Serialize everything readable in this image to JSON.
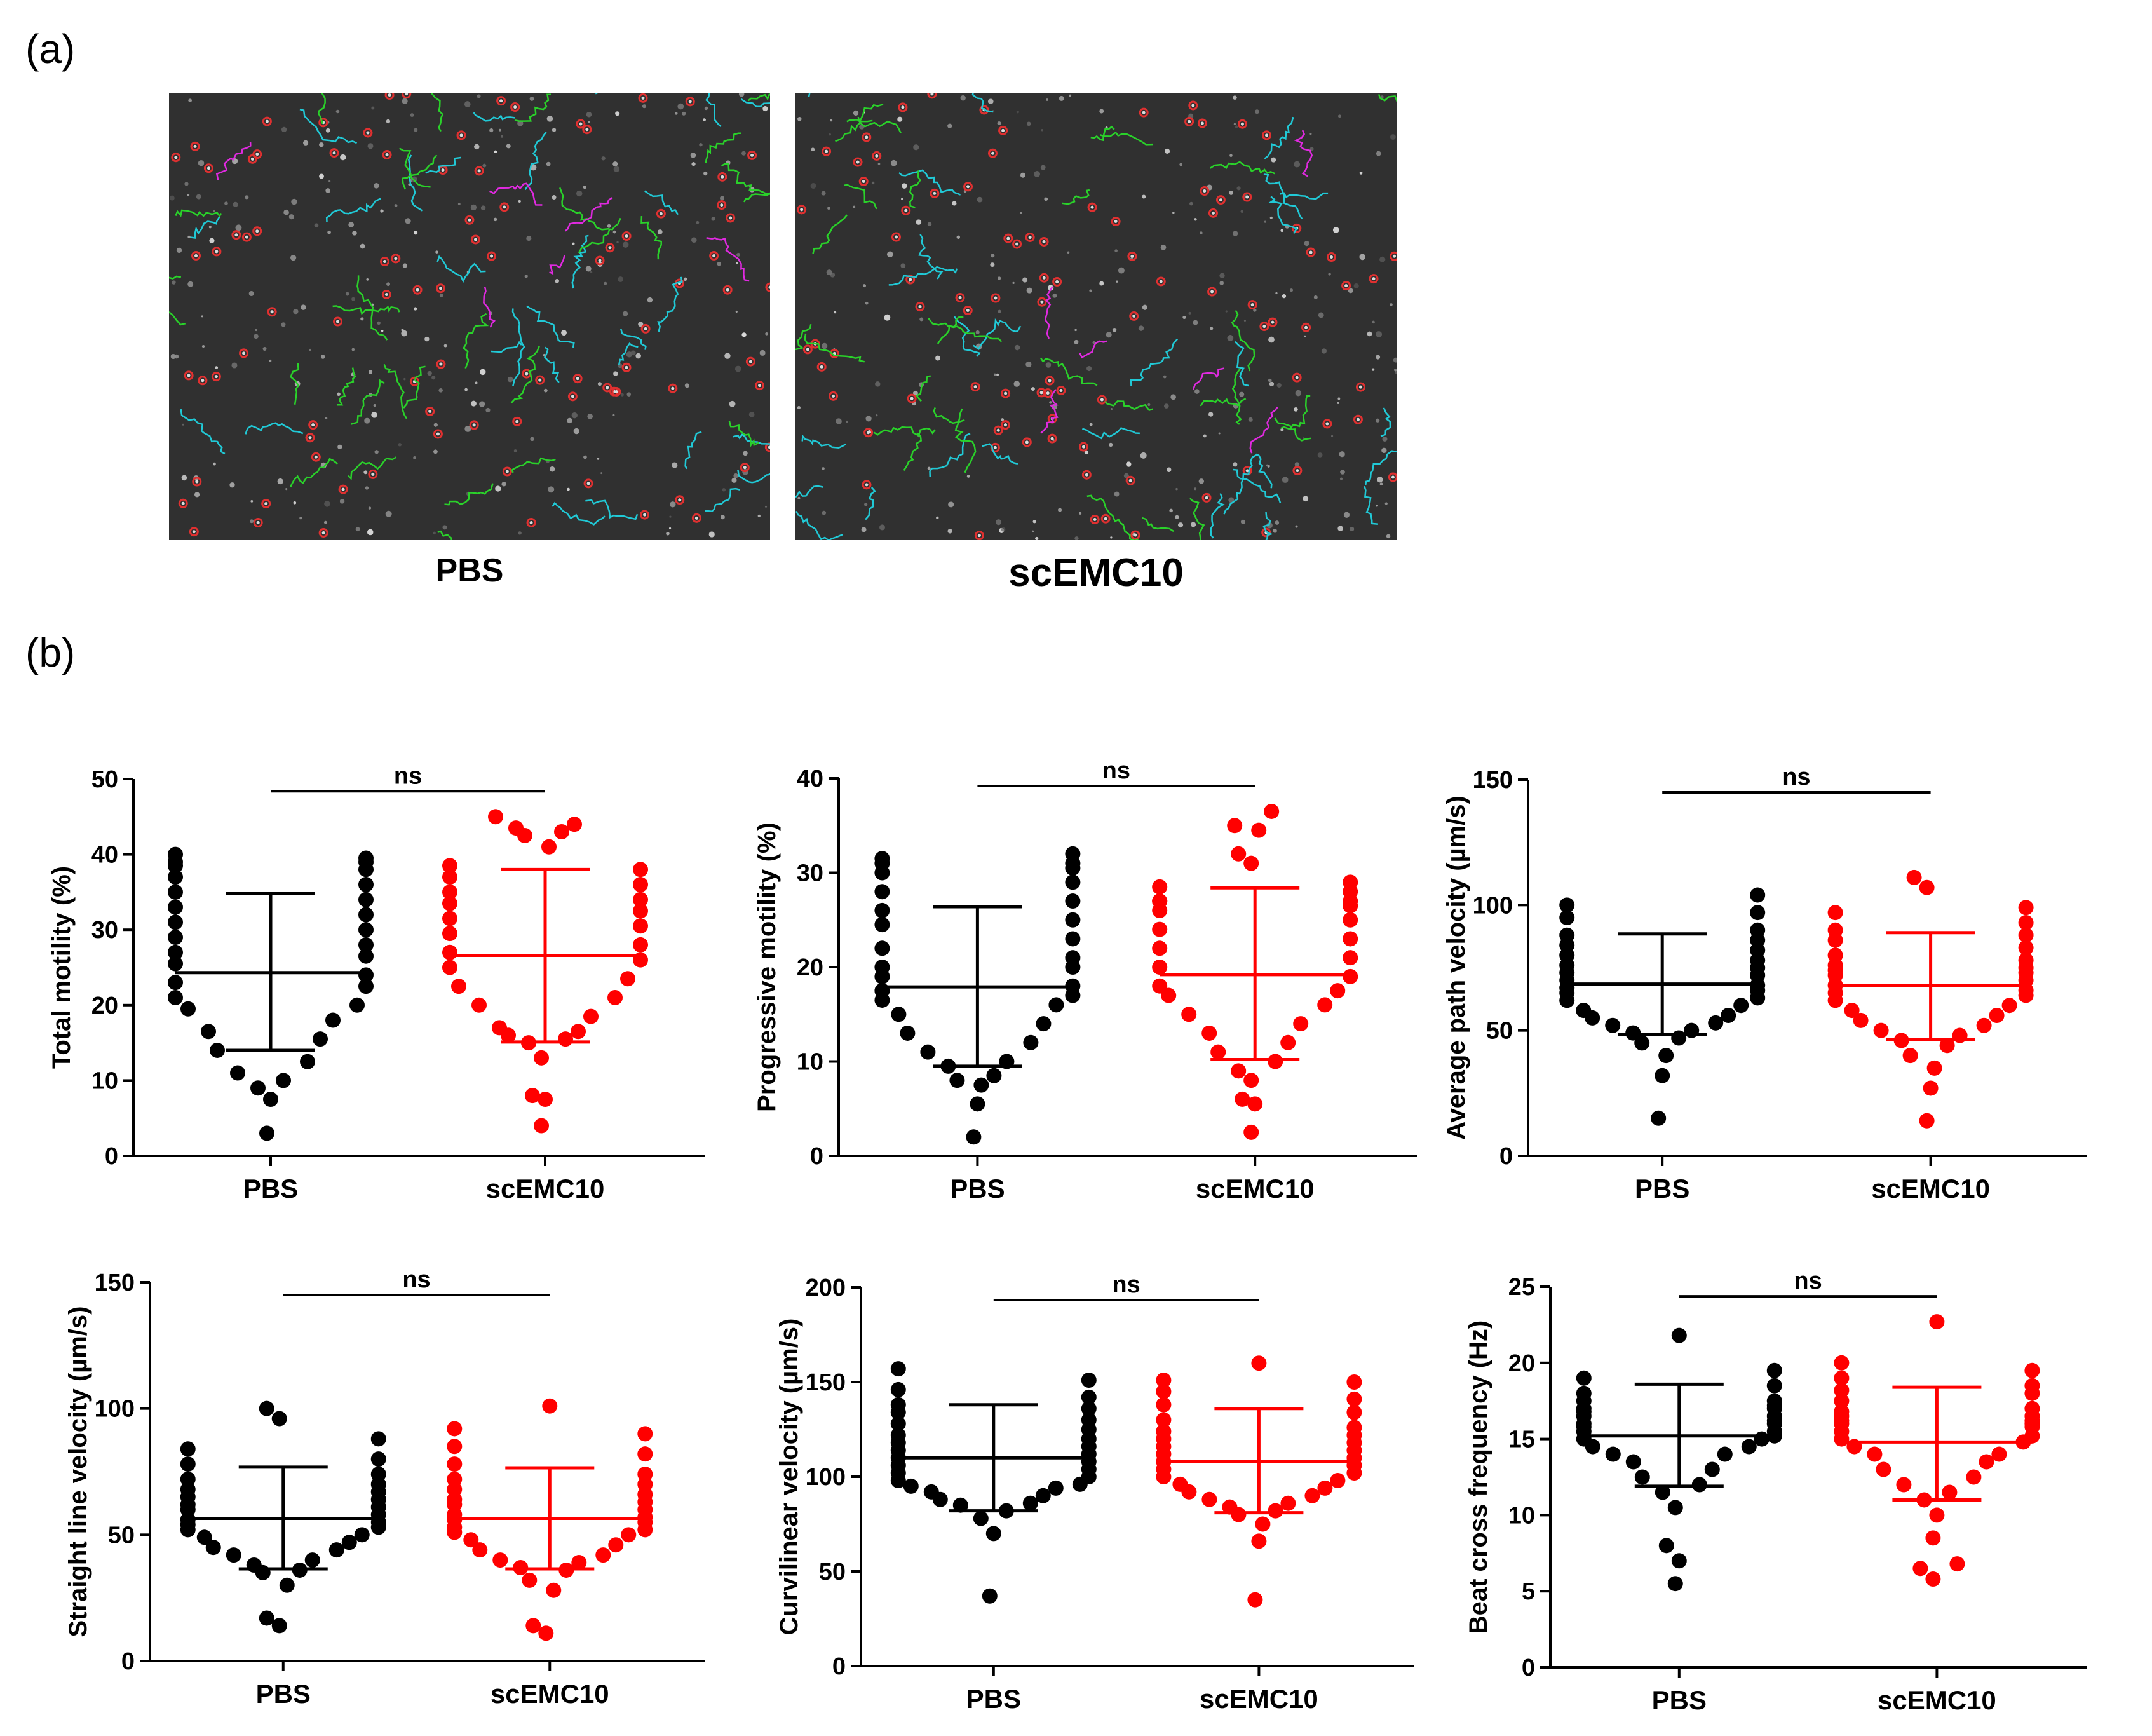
{
  "panel_a": {
    "label": "(a)",
    "images": [
      {
        "caption": "PBS"
      },
      {
        "caption": "scEMC10"
      }
    ]
  },
  "panel_b": {
    "label": "(b)"
  },
  "colors": {
    "pbs": "#000000",
    "scemc10": "#ff0000",
    "axis": "#000000"
  },
  "chart_data": [
    {
      "type": "scatter",
      "ylabel": "Total motility (%)",
      "categories": [
        "PBS",
        "scEMC10"
      ],
      "ylim": [
        0,
        50
      ],
      "yticks": [
        0,
        10,
        20,
        30,
        40,
        50
      ],
      "significance": "ns",
      "series": [
        {
          "name": "PBS",
          "color": "#000000",
          "mean": 24.3,
          "sd_low": 14.0,
          "sd_high": 34.8,
          "values": [
            3,
            7.5,
            9,
            10,
            11,
            12.5,
            14,
            15.5,
            16.5,
            18,
            19.5,
            20,
            21,
            22.5,
            23,
            24,
            25.5,
            26.5,
            27,
            28,
            29,
            30,
            31,
            32,
            33,
            34,
            35,
            36,
            37,
            38,
            38.5,
            39,
            39,
            39.5,
            40
          ]
        },
        {
          "name": "scEMC10",
          "color": "#ff0000",
          "mean": 26.6,
          "sd_low": 15.1,
          "sd_high": 38.0,
          "values": [
            4,
            7.5,
            8,
            13,
            15,
            15.5,
            16,
            16.5,
            17,
            18.5,
            20,
            21,
            22.5,
            23.5,
            25,
            26,
            27,
            28,
            29.5,
            30.5,
            31.5,
            32.5,
            33.5,
            34,
            35,
            36,
            37,
            38,
            38.5,
            41,
            42.5,
            43,
            43.5,
            44,
            45
          ]
        }
      ]
    },
    {
      "type": "scatter",
      "ylabel": "Progressive motility (%)",
      "categories": [
        "PBS",
        "scEMC10"
      ],
      "ylim": [
        0,
        40
      ],
      "yticks": [
        0,
        10,
        20,
        30,
        40
      ],
      "significance": "ns",
      "series": [
        {
          "name": "PBS",
          "color": "#000000",
          "mean": 17.9,
          "sd_low": 9.5,
          "sd_high": 26.4,
          "values": [
            2,
            5.5,
            7.5,
            8,
            8.5,
            9.5,
            10,
            11,
            12,
            13,
            14,
            15,
            16,
            16.5,
            17,
            17.5,
            18,
            19,
            20,
            20,
            21,
            22,
            23,
            24.5,
            25,
            26,
            27,
            28,
            29,
            30,
            30.5,
            31,
            31,
            31.5,
            32
          ]
        },
        {
          "name": "scEMC10",
          "color": "#ff0000",
          "mean": 19.2,
          "sd_low": 10.2,
          "sd_high": 28.4,
          "values": [
            2.5,
            5.5,
            6,
            8,
            9,
            10,
            11,
            12,
            13,
            14,
            15,
            16,
            17,
            17.5,
            18,
            19,
            20,
            21,
            22,
            23,
            24,
            25,
            26,
            26.5,
            27,
            27,
            27,
            28,
            28.5,
            29,
            31,
            32,
            34.5,
            35,
            36.5
          ]
        }
      ]
    },
    {
      "type": "scatter",
      "ylabel": "Average path velocity  (µm/s)",
      "categories": [
        "PBS",
        "scEMC10"
      ],
      "ylim": [
        0,
        150
      ],
      "yticks": [
        0,
        50,
        100,
        150
      ],
      "significance": "ns",
      "series": [
        {
          "name": "PBS",
          "color": "#000000",
          "mean": 68.5,
          "sd_low": 48.5,
          "sd_high": 88.5,
          "values": [
            15,
            32,
            40,
            45,
            47,
            49,
            50,
            52,
            53,
            55,
            56,
            58,
            60,
            62,
            63,
            65,
            66,
            67,
            68,
            70,
            72,
            73,
            75,
            76,
            78,
            80,
            82,
            84,
            86,
            88,
            90,
            95,
            97,
            100,
            104
          ]
        },
        {
          "name": "scEMC10",
          "color": "#ff0000",
          "mean": 67.8,
          "sd_low": 46.5,
          "sd_high": 89.0,
          "values": [
            14,
            27,
            35,
            40,
            44,
            46,
            48,
            50,
            52,
            54,
            56,
            58,
            60,
            62,
            64,
            65,
            66,
            68,
            70,
            72,
            73,
            74,
            75,
            76,
            78,
            80,
            83,
            86,
            88,
            90,
            93,
            97,
            99,
            107,
            111
          ]
        }
      ]
    },
    {
      "type": "scatter",
      "ylabel": "Straight line velocity (µm/s)",
      "categories": [
        "PBS",
        "scEMC10"
      ],
      "ylim": [
        0,
        150
      ],
      "yticks": [
        0,
        50,
        100,
        150
      ],
      "significance": "ns",
      "series": [
        {
          "name": "PBS",
          "color": "#000000",
          "mean": 56.5,
          "sd_low": 36.5,
          "sd_high": 76.8,
          "values": [
            14,
            17,
            30,
            35,
            36,
            38,
            40,
            42,
            44,
            45,
            47,
            49,
            50,
            52,
            53,
            54,
            55,
            56,
            58,
            60,
            61,
            62,
            64,
            65,
            67,
            68,
            70,
            72,
            74,
            78,
            80,
            84,
            88,
            96,
            100
          ]
        },
        {
          "name": "scEMC10",
          "color": "#ff0000",
          "mean": 56.5,
          "sd_low": 36.5,
          "sd_high": 76.5,
          "values": [
            11,
            14,
            28,
            32,
            36,
            37,
            39,
            40,
            42,
            44,
            46,
            48,
            50,
            51,
            52,
            53,
            55,
            56,
            57,
            58,
            60,
            62,
            63,
            64,
            66,
            68,
            70,
            72,
            74,
            78,
            82,
            85,
            90,
            92,
            101
          ]
        }
      ]
    },
    {
      "type": "scatter",
      "ylabel": "Curvilinear velocity (µm/s)",
      "categories": [
        "PBS",
        "scEMC10"
      ],
      "ylim": [
        0,
        200
      ],
      "yticks": [
        0,
        50,
        100,
        150,
        200
      ],
      "significance": "ns",
      "series": [
        {
          "name": "PBS",
          "color": "#000000",
          "mean": 110,
          "sd_low": 82,
          "sd_high": 138,
          "values": [
            37,
            70,
            78,
            82,
            85,
            86,
            88,
            90,
            92,
            94,
            95,
            96,
            98,
            100,
            102,
            104,
            106,
            108,
            110,
            112,
            114,
            116,
            118,
            120,
            122,
            125,
            128,
            130,
            134,
            136,
            138,
            142,
            146,
            151,
            157
          ]
        },
        {
          "name": "scEMC10",
          "color": "#ff0000",
          "mean": 108,
          "sd_low": 81,
          "sd_high": 136,
          "values": [
            35,
            66,
            75,
            80,
            82,
            84,
            86,
            88,
            90,
            92,
            94,
            96,
            98,
            100,
            102,
            104,
            106,
            108,
            110,
            112,
            114,
            116,
            118,
            120,
            122,
            124,
            126,
            130,
            134,
            138,
            141,
            145,
            150,
            151,
            160
          ]
        }
      ]
    },
    {
      "type": "scatter",
      "ylabel": "Beat cross frequency (Hz)",
      "categories": [
        "PBS",
        "scEMC10"
      ],
      "ylim": [
        0,
        25
      ],
      "yticks": [
        0,
        5,
        10,
        15,
        20,
        25
      ],
      "significance": "ns",
      "series": [
        {
          "name": "PBS",
          "color": "#000000",
          "mean": 15.2,
          "sd_low": 11.9,
          "sd_high": 18.6,
          "values": [
            5.5,
            7,
            8,
            10.5,
            11.5,
            12,
            12.5,
            13,
            13.5,
            14,
            14,
            14.5,
            14.5,
            15,
            15,
            15.2,
            15.5,
            15.5,
            15.8,
            16,
            16,
            16.2,
            16.5,
            16.5,
            16.8,
            17,
            17,
            17.2,
            17.5,
            17.5,
            18,
            18.5,
            19,
            19.5,
            21.8
          ]
        },
        {
          "name": "scEMC10",
          "color": "#ff0000",
          "mean": 14.8,
          "sd_low": 11.0,
          "sd_high": 18.4,
          "values": [
            5.8,
            6.5,
            6.8,
            8.5,
            10,
            11,
            11.5,
            12,
            12.5,
            13,
            13.5,
            14,
            14,
            14.5,
            14.8,
            15,
            15.2,
            15.5,
            15.8,
            16,
            16,
            16.2,
            16.2,
            16.5,
            16.5,
            16.8,
            17,
            17.5,
            18,
            18.2,
            18.5,
            19,
            19.5,
            20,
            22.7
          ]
        }
      ]
    }
  ]
}
